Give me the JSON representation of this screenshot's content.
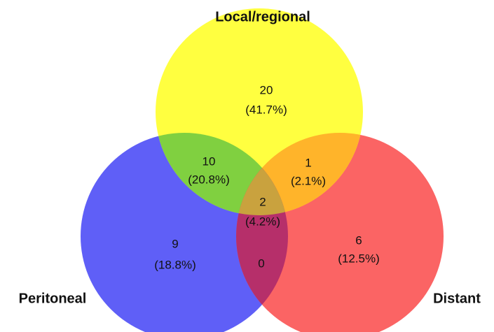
{
  "sets": [
    {
      "label": "Local/regional"
    },
    {
      "label": "Peritoneal"
    },
    {
      "label": "Distant"
    }
  ],
  "regions": [
    {
      "count": 20,
      "percent": "(41.7%)"
    },
    {
      "count": 10,
      "percent": "(20.8%)"
    },
    {
      "count": 1,
      "percent": "(2.1%)"
    },
    {
      "count": 2,
      "percent": "(4.2%)"
    },
    {
      "count": 9,
      "percent": "(18.8%)"
    },
    {
      "count": 6,
      "percent": "(12.5%)"
    },
    {
      "count": 0
    }
  ]
}
